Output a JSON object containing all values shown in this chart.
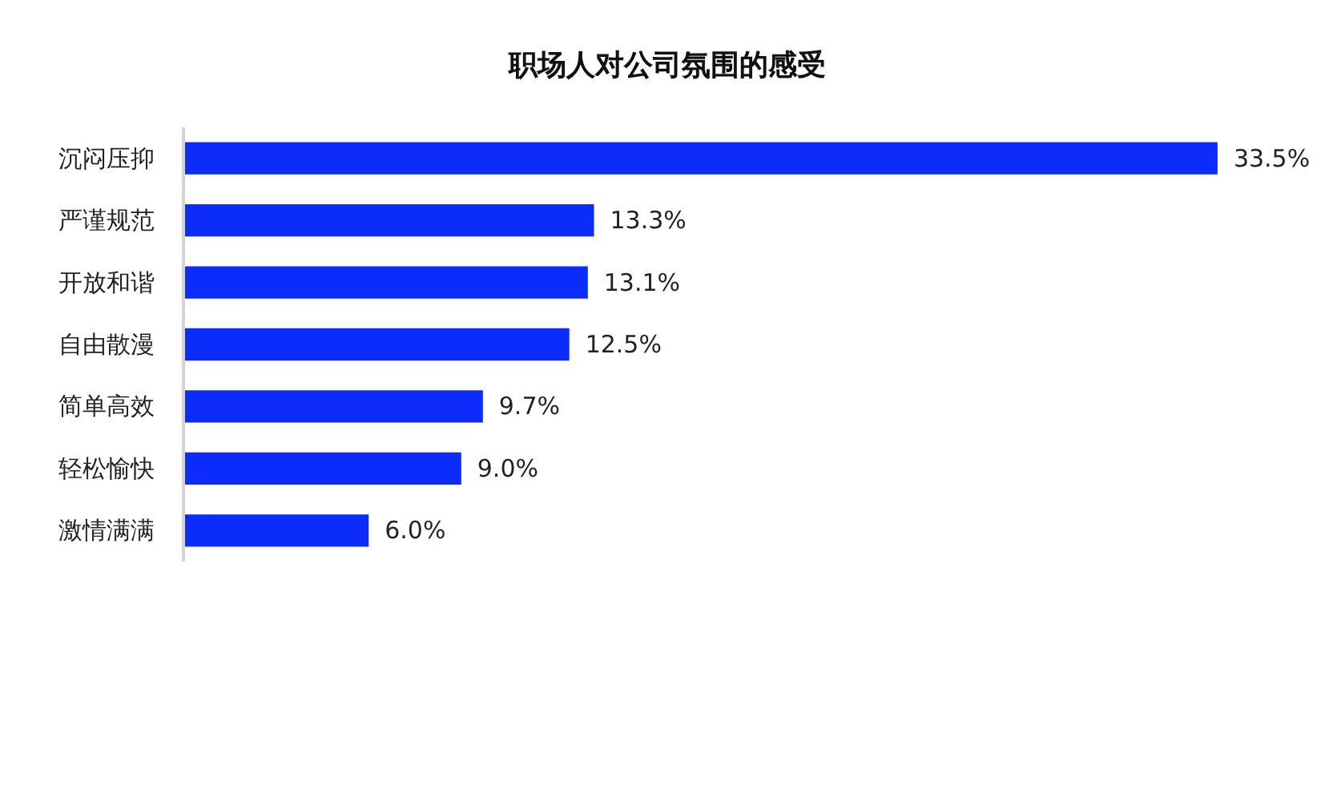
{
  "chart_data": {
    "type": "bar",
    "orientation": "horizontal",
    "title": "职场人对公司氛围的感受",
    "categories": [
      "沉闷压抑",
      "严谨规范",
      "开放和谐",
      "自由散漫",
      "简单高效",
      "轻松愉快",
      "激情满满"
    ],
    "values": [
      33.5,
      13.3,
      13.1,
      12.5,
      9.7,
      9.0,
      6.0
    ],
    "value_labels": [
      "33.5%",
      "13.3%",
      "13.1%",
      "12.5%",
      "9.7%",
      "9.0%",
      "6.0%"
    ],
    "color": "#0c2cfc"
  }
}
